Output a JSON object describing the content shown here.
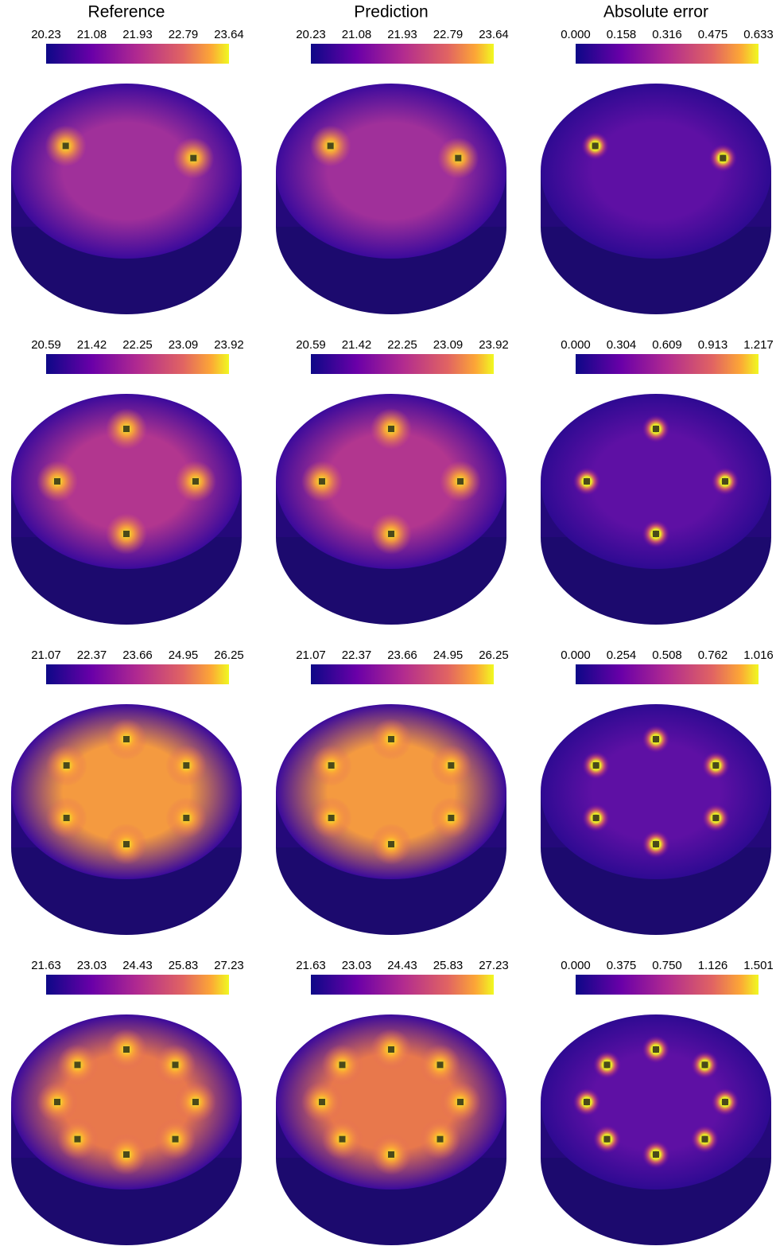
{
  "columns": [
    "Reference",
    "Prediction",
    "Absolute error"
  ],
  "rows": [
    {
      "colorbars": [
        {
          "ticks": [
            "20.23",
            "21.08",
            "21.93",
            "22.79",
            "23.64"
          ]
        },
        {
          "ticks": [
            "20.23",
            "21.08",
            "21.93",
            "22.79",
            "23.64"
          ]
        },
        {
          "ticks": [
            "0.000",
            "0.158",
            "0.316",
            "0.475",
            "0.633"
          ]
        }
      ]
    },
    {
      "colorbars": [
        {
          "ticks": [
            "20.59",
            "21.42",
            "22.25",
            "23.09",
            "23.92"
          ]
        },
        {
          "ticks": [
            "20.59",
            "21.42",
            "22.25",
            "23.09",
            "23.92"
          ]
        },
        {
          "ticks": [
            "0.000",
            "0.304",
            "0.609",
            "0.913",
            "1.217"
          ]
        }
      ]
    },
    {
      "colorbars": [
        {
          "ticks": [
            "21.07",
            "22.37",
            "23.66",
            "24.95",
            "26.25"
          ]
        },
        {
          "ticks": [
            "21.07",
            "22.37",
            "23.66",
            "24.95",
            "26.25"
          ]
        },
        {
          "ticks": [
            "0.000",
            "0.254",
            "0.508",
            "0.762",
            "1.016"
          ]
        }
      ]
    },
    {
      "colorbars": [
        {
          "ticks": [
            "21.63",
            "23.03",
            "24.43",
            "25.83",
            "27.23"
          ]
        },
        {
          "ticks": [
            "21.63",
            "23.03",
            "24.43",
            "25.83",
            "27.23"
          ]
        },
        {
          "ticks": [
            "0.000",
            "0.375",
            "0.750",
            "1.126",
            "1.501"
          ]
        }
      ]
    }
  ]
}
